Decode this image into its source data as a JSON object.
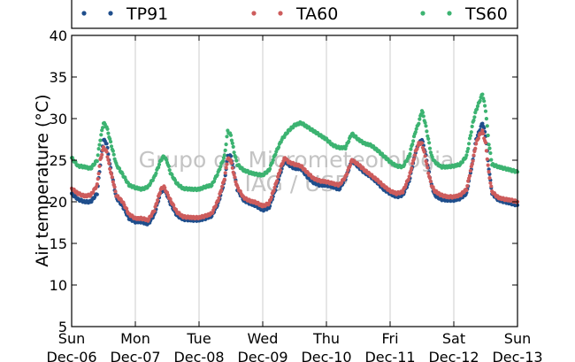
{
  "chart_data": {
    "type": "scatter",
    "ylabel": "Air temperature (°C)",
    "xlabel": "",
    "ylim": [
      5,
      40
    ],
    "xlim_days": [
      0,
      7
    ],
    "yticks": [
      5,
      10,
      15,
      20,
      25,
      30,
      35,
      40
    ],
    "xticks": [
      {
        "line1": "Sun",
        "line2": "Dec-06"
      },
      {
        "line1": "Mon",
        "line2": "Dec-07"
      },
      {
        "line1": "Tue",
        "line2": "Dec-08"
      },
      {
        "line1": "Wed",
        "line2": "Dec-09"
      },
      {
        "line1": "Thu",
        "line2": "Dec-10"
      },
      {
        "line1": "Fri",
        "line2": "Dec-11"
      },
      {
        "line1": "Sat",
        "line2": "Dec-12"
      },
      {
        "line1": "Sun",
        "line2": "Dec-13"
      }
    ],
    "grid": "vertical",
    "legend_position": "top",
    "watermark": [
      "Grupo de Micrometeorologia",
      "IAG / USP"
    ],
    "series": [
      {
        "name": "TP91",
        "color": "#1f4e8c",
        "points": [
          [
            0.0,
            21.0
          ],
          [
            0.1,
            20.3
          ],
          [
            0.2,
            20.0
          ],
          [
            0.3,
            20.0
          ],
          [
            0.4,
            21.0
          ],
          [
            0.45,
            24.5
          ],
          [
            0.5,
            27.5
          ],
          [
            0.55,
            27.0
          ],
          [
            0.6,
            24.5
          ],
          [
            0.65,
            22.5
          ],
          [
            0.7,
            20.5
          ],
          [
            0.8,
            19.5
          ],
          [
            0.9,
            18.0
          ],
          [
            1.0,
            17.6
          ],
          [
            1.1,
            17.6
          ],
          [
            1.2,
            17.3
          ],
          [
            1.3,
            18.5
          ],
          [
            1.4,
            21.2
          ],
          [
            1.45,
            21.5
          ],
          [
            1.5,
            20.8
          ],
          [
            1.55,
            19.8
          ],
          [
            1.65,
            18.4
          ],
          [
            1.75,
            17.9
          ],
          [
            1.9,
            17.8
          ],
          [
            2.0,
            17.8
          ],
          [
            2.1,
            18.0
          ],
          [
            2.2,
            18.3
          ],
          [
            2.3,
            19.8
          ],
          [
            2.4,
            22.5
          ],
          [
            2.45,
            25.5
          ],
          [
            2.5,
            25.5
          ],
          [
            2.55,
            23.5
          ],
          [
            2.6,
            21.5
          ],
          [
            2.7,
            20.2
          ],
          [
            2.8,
            19.8
          ],
          [
            2.9,
            19.5
          ],
          [
            3.0,
            19.0
          ],
          [
            3.1,
            19.3
          ],
          [
            3.2,
            21.5
          ],
          [
            3.3,
            24.0
          ],
          [
            3.35,
            25.0
          ],
          [
            3.4,
            24.5
          ],
          [
            3.5,
            24.0
          ],
          [
            3.6,
            24.0
          ],
          [
            3.7,
            23.0
          ],
          [
            3.8,
            22.3
          ],
          [
            3.9,
            22.0
          ],
          [
            4.0,
            22.0
          ],
          [
            4.1,
            21.8
          ],
          [
            4.2,
            21.5
          ],
          [
            4.3,
            22.8
          ],
          [
            4.4,
            25.0
          ],
          [
            4.5,
            24.2
          ],
          [
            4.6,
            23.5
          ],
          [
            4.7,
            23.0
          ],
          [
            4.8,
            22.3
          ],
          [
            4.9,
            21.5
          ],
          [
            5.0,
            21.0
          ],
          [
            5.1,
            20.6
          ],
          [
            5.2,
            20.8
          ],
          [
            5.3,
            22.5
          ],
          [
            5.4,
            26.0
          ],
          [
            5.45,
            27.0
          ],
          [
            5.5,
            27.5
          ],
          [
            5.55,
            26.0
          ],
          [
            5.6,
            24.0
          ],
          [
            5.65,
            22.0
          ],
          [
            5.7,
            20.8
          ],
          [
            5.8,
            20.3
          ],
          [
            5.9,
            20.2
          ],
          [
            6.0,
            20.2
          ],
          [
            6.1,
            20.4
          ],
          [
            6.2,
            21.0
          ],
          [
            6.3,
            25.0
          ],
          [
            6.35,
            27.5
          ],
          [
            6.4,
            28.5
          ],
          [
            6.45,
            29.5
          ],
          [
            6.5,
            28.0
          ],
          [
            6.55,
            24.0
          ],
          [
            6.6,
            21.0
          ],
          [
            6.7,
            20.2
          ],
          [
            6.8,
            20.0
          ],
          [
            6.9,
            19.8
          ],
          [
            7.0,
            19.6
          ]
        ]
      },
      {
        "name": "TA60",
        "color": "#cd5c5c",
        "points": [
          [
            0.0,
            21.6
          ],
          [
            0.1,
            21.0
          ],
          [
            0.2,
            20.7
          ],
          [
            0.3,
            20.8
          ],
          [
            0.4,
            22.0
          ],
          [
            0.45,
            25.0
          ],
          [
            0.5,
            26.5
          ],
          [
            0.55,
            26.0
          ],
          [
            0.6,
            24.0
          ],
          [
            0.65,
            22.5
          ],
          [
            0.7,
            20.8
          ],
          [
            0.8,
            20.0
          ],
          [
            0.9,
            18.5
          ],
          [
            1.0,
            18.0
          ],
          [
            1.1,
            18.0
          ],
          [
            1.2,
            17.8
          ],
          [
            1.3,
            19.0
          ],
          [
            1.4,
            21.5
          ],
          [
            1.45,
            21.8
          ],
          [
            1.5,
            21.0
          ],
          [
            1.55,
            20.2
          ],
          [
            1.65,
            18.8
          ],
          [
            1.75,
            18.2
          ],
          [
            1.9,
            18.1
          ],
          [
            2.0,
            18.1
          ],
          [
            2.1,
            18.3
          ],
          [
            2.2,
            18.6
          ],
          [
            2.3,
            20.2
          ],
          [
            2.4,
            22.8
          ],
          [
            2.45,
            25.2
          ],
          [
            2.5,
            25.0
          ],
          [
            2.55,
            23.2
          ],
          [
            2.6,
            21.8
          ],
          [
            2.7,
            20.5
          ],
          [
            2.8,
            20.1
          ],
          [
            2.9,
            19.9
          ],
          [
            3.0,
            19.5
          ],
          [
            3.1,
            19.8
          ],
          [
            3.2,
            22.0
          ],
          [
            3.3,
            24.5
          ],
          [
            3.35,
            25.3
          ],
          [
            3.4,
            24.8
          ],
          [
            3.5,
            24.5
          ],
          [
            3.6,
            24.3
          ],
          [
            3.7,
            23.5
          ],
          [
            3.8,
            22.8
          ],
          [
            3.9,
            22.5
          ],
          [
            4.0,
            22.4
          ],
          [
            4.1,
            22.2
          ],
          [
            4.2,
            22.0
          ],
          [
            4.3,
            23.0
          ],
          [
            4.4,
            25.0
          ],
          [
            4.5,
            24.5
          ],
          [
            4.6,
            23.8
          ],
          [
            4.7,
            23.2
          ],
          [
            4.8,
            22.6
          ],
          [
            4.9,
            21.9
          ],
          [
            5.0,
            21.3
          ],
          [
            5.1,
            21.0
          ],
          [
            5.2,
            21.2
          ],
          [
            5.3,
            23.0
          ],
          [
            5.4,
            26.0
          ],
          [
            5.45,
            27.0
          ],
          [
            5.5,
            27.0
          ],
          [
            5.55,
            25.5
          ],
          [
            5.6,
            23.5
          ],
          [
            5.65,
            22.0
          ],
          [
            5.7,
            21.3
          ],
          [
            5.8,
            20.8
          ],
          [
            5.9,
            20.6
          ],
          [
            6.0,
            20.6
          ],
          [
            6.1,
            20.8
          ],
          [
            6.2,
            21.5
          ],
          [
            6.3,
            25.0
          ],
          [
            6.35,
            27.0
          ],
          [
            6.4,
            28.0
          ],
          [
            6.45,
            28.5
          ],
          [
            6.5,
            27.0
          ],
          [
            6.55,
            23.5
          ],
          [
            6.6,
            21.2
          ],
          [
            6.7,
            20.5
          ],
          [
            6.8,
            20.3
          ],
          [
            6.9,
            20.2
          ],
          [
            7.0,
            20.0
          ]
        ]
      },
      {
        "name": "TS60",
        "color": "#3cb371",
        "points": [
          [
            0.0,
            25.3
          ],
          [
            0.1,
            24.3
          ],
          [
            0.2,
            24.2
          ],
          [
            0.3,
            24.0
          ],
          [
            0.4,
            25.0
          ],
          [
            0.45,
            27.5
          ],
          [
            0.5,
            29.5
          ],
          [
            0.55,
            29.0
          ],
          [
            0.6,
            27.5
          ],
          [
            0.65,
            26.0
          ],
          [
            0.7,
            24.5
          ],
          [
            0.8,
            23.3
          ],
          [
            0.9,
            22.0
          ],
          [
            1.0,
            21.7
          ],
          [
            1.1,
            21.5
          ],
          [
            1.2,
            21.8
          ],
          [
            1.3,
            23.0
          ],
          [
            1.4,
            25.0
          ],
          [
            1.45,
            25.5
          ],
          [
            1.5,
            24.8
          ],
          [
            1.55,
            23.5
          ],
          [
            1.65,
            22.2
          ],
          [
            1.75,
            21.6
          ],
          [
            1.9,
            21.5
          ],
          [
            2.0,
            21.5
          ],
          [
            2.1,
            21.8
          ],
          [
            2.2,
            22.0
          ],
          [
            2.3,
            23.5
          ],
          [
            2.4,
            25.5
          ],
          [
            2.45,
            28.5
          ],
          [
            2.5,
            28.0
          ],
          [
            2.55,
            26.0
          ],
          [
            2.6,
            24.5
          ],
          [
            2.7,
            23.8
          ],
          [
            2.8,
            23.5
          ],
          [
            2.9,
            23.3
          ],
          [
            3.0,
            23.2
          ],
          [
            3.1,
            23.8
          ],
          [
            3.2,
            25.8
          ],
          [
            3.3,
            27.5
          ],
          [
            3.4,
            28.5
          ],
          [
            3.5,
            29.2
          ],
          [
            3.6,
            29.5
          ],
          [
            3.7,
            29.0
          ],
          [
            3.8,
            28.5
          ],
          [
            3.9,
            28.0
          ],
          [
            4.0,
            27.5
          ],
          [
            4.1,
            26.8
          ],
          [
            4.2,
            26.5
          ],
          [
            4.3,
            26.5
          ],
          [
            4.4,
            28.2
          ],
          [
            4.5,
            27.5
          ],
          [
            4.6,
            27.0
          ],
          [
            4.7,
            26.8
          ],
          [
            4.8,
            26.2
          ],
          [
            4.9,
            25.5
          ],
          [
            5.0,
            24.8
          ],
          [
            5.1,
            24.3
          ],
          [
            5.2,
            24.2
          ],
          [
            5.3,
            25.5
          ],
          [
            5.4,
            28.5
          ],
          [
            5.45,
            29.5
          ],
          [
            5.5,
            31.0
          ],
          [
            5.55,
            29.5
          ],
          [
            5.6,
            27.5
          ],
          [
            5.65,
            25.5
          ],
          [
            5.7,
            24.8
          ],
          [
            5.8,
            24.2
          ],
          [
            5.9,
            24.2
          ],
          [
            6.0,
            24.3
          ],
          [
            6.1,
            24.5
          ],
          [
            6.2,
            25.5
          ],
          [
            6.3,
            29.5
          ],
          [
            6.35,
            31.0
          ],
          [
            6.4,
            32.0
          ],
          [
            6.45,
            33.0
          ],
          [
            6.5,
            31.0
          ],
          [
            6.55,
            27.0
          ],
          [
            6.6,
            24.5
          ],
          [
            6.7,
            24.2
          ],
          [
            6.8,
            24.0
          ],
          [
            6.9,
            23.8
          ],
          [
            7.0,
            23.6
          ]
        ]
      }
    ]
  }
}
